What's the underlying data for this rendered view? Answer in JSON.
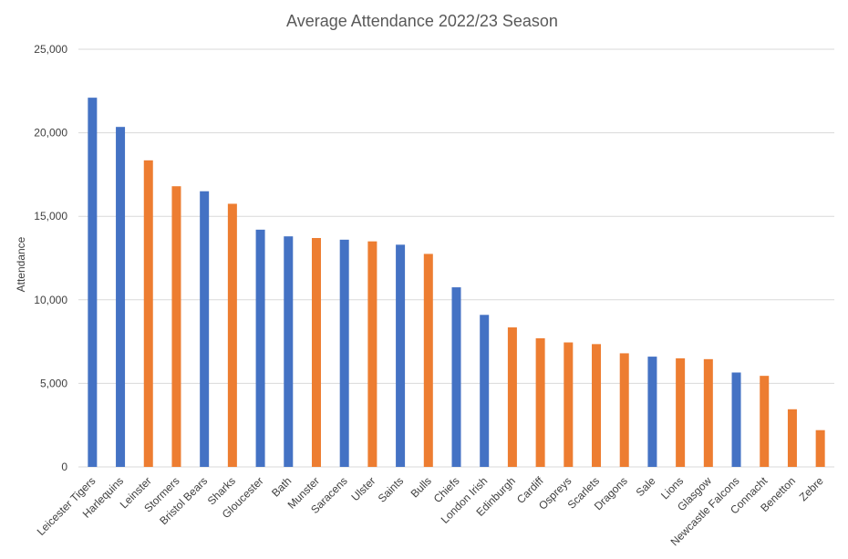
{
  "chart_data": {
    "type": "bar",
    "title": "Average Attendance 2022/23 Season",
    "xlabel": "",
    "ylabel": "Attendance",
    "ylim": [
      0,
      25000
    ],
    "yticks": [
      0,
      5000,
      10000,
      15000,
      20000,
      25000
    ],
    "ytick_labels": [
      "0",
      "5,000",
      "10,000",
      "15,000",
      "20,000",
      "25,000"
    ],
    "grid": true,
    "legend": "none",
    "colors": {
      "blue": "#4472c4",
      "orange": "#ed7d31"
    },
    "categories": [
      "Leicester Tigers",
      "Harlequins",
      "Leinster",
      "Stormers",
      "Bristol Bears",
      "Sharks",
      "Gloucester",
      "Bath",
      "Munster",
      "Saracens",
      "Ulster",
      "Saints",
      "Bulls",
      "Chiefs",
      "London Irish",
      "Edinburgh",
      "Cardiff",
      "Ospreys",
      "Scarlets",
      "Dragons",
      "Sale",
      "Lions",
      "Glasgow",
      "Newcastle Falcons",
      "Connacht",
      "Benetton",
      "Zebre"
    ],
    "values": [
      22100,
      20350,
      18350,
      16800,
      16500,
      15750,
      14200,
      13800,
      13700,
      13600,
      13500,
      13300,
      12750,
      10750,
      9100,
      8350,
      7700,
      7450,
      7350,
      6800,
      6600,
      6500,
      6450,
      5650,
      5450,
      3450,
      2200
    ],
    "bar_colors": [
      "blue",
      "blue",
      "orange",
      "orange",
      "blue",
      "orange",
      "blue",
      "blue",
      "orange",
      "blue",
      "orange",
      "blue",
      "orange",
      "blue",
      "blue",
      "orange",
      "orange",
      "orange",
      "orange",
      "orange",
      "blue",
      "orange",
      "orange",
      "blue",
      "orange",
      "orange",
      "orange"
    ]
  }
}
